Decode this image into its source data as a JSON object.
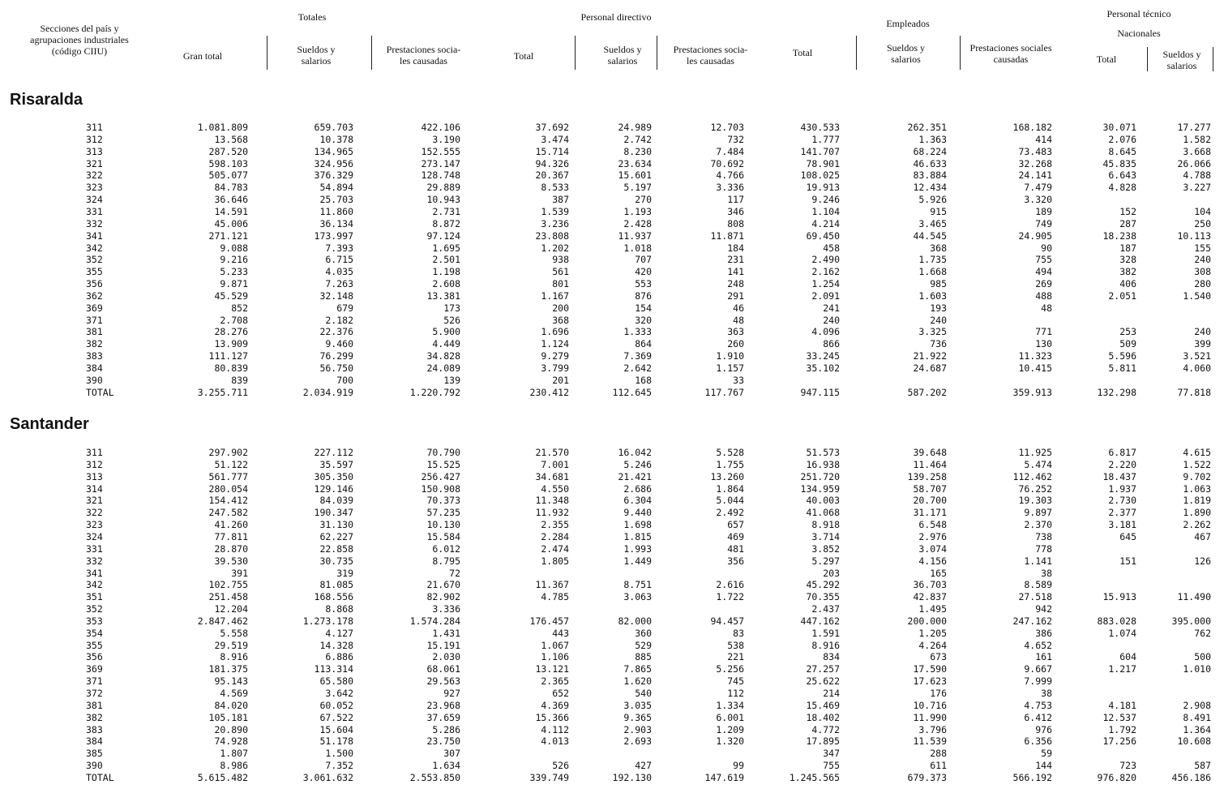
{
  "header": {
    "row_labels": "Secciones del país y\nagrupaciones industriales\n(código CIIU)",
    "totales": "Totales",
    "personal_directivo": "Personal directivo",
    "empleados": "Empleados",
    "personal_tecnico": "Personal técnico",
    "nacionales": "Nacionales",
    "columns": [
      "Gran total",
      "Sueldos y\nsalarios",
      "Prestaciones socia-\nles causadas",
      "Total",
      "Sueldos y\nsalarios",
      "Prestaciones socia-\nles causadas",
      "Total",
      "Sueldos y\nsalarios",
      "Prestaciones sociales\ncausadas",
      "Total",
      "Sueldos y\nsalarios"
    ]
  },
  "sections": [
    {
      "name": "Risaralda",
      "rows": [
        [
          "311",
          "1.081.809",
          "659.703",
          "422.106",
          "37.692",
          "24.989",
          "12.703",
          "430.533",
          "262.351",
          "168.182",
          "30.071",
          "17.277"
        ],
        [
          "312",
          "13.568",
          "10.378",
          "3.190",
          "3.474",
          "2.742",
          "732",
          "1.777",
          "1.363",
          "414",
          "2.076",
          "1.582"
        ],
        [
          "313",
          "287.520",
          "134.965",
          "152.555",
          "15.714",
          "8.230",
          "7.484",
          "141.707",
          "68.224",
          "73.483",
          "8.645",
          "3.668"
        ],
        [
          "321",
          "598.103",
          "324.956",
          "273.147",
          "94.326",
          "23.634",
          "70.692",
          "78.901",
          "46.633",
          "32.268",
          "45.835",
          "26.066"
        ],
        [
          "322",
          "505.077",
          "376.329",
          "128.748",
          "20.367",
          "15.601",
          "4.766",
          "108.025",
          "83.884",
          "24.141",
          "6.643",
          "4.788"
        ],
        [
          "323",
          "84.783",
          "54.894",
          "29.889",
          "8.533",
          "5.197",
          "3.336",
          "19.913",
          "12.434",
          "7.479",
          "4.828",
          "3.227"
        ],
        [
          "324",
          "36.646",
          "25.703",
          "10.943",
          "387",
          "270",
          "117",
          "9.246",
          "5.926",
          "3.320",
          "",
          ""
        ],
        [
          "331",
          "14.591",
          "11.860",
          "2.731",
          "1.539",
          "1.193",
          "346",
          "1.104",
          "915",
          "189",
          "152",
          "104"
        ],
        [
          "332",
          "45.006",
          "36.134",
          "8.872",
          "3.236",
          "2.428",
          "808",
          "4.214",
          "3.465",
          "749",
          "287",
          "250"
        ],
        [
          "341",
          "271.121",
          "173.997",
          "97.124",
          "23.808",
          "11.937",
          "11.871",
          "69.450",
          "44.545",
          "24.905",
          "18.238",
          "10.113"
        ],
        [
          "342",
          "9.088",
          "7.393",
          "1.695",
          "1.202",
          "1.018",
          "184",
          "458",
          "368",
          "90",
          "187",
          "155"
        ],
        [
          "352",
          "9.216",
          "6.715",
          "2.501",
          "938",
          "707",
          "231",
          "2.490",
          "1.735",
          "755",
          "328",
          "240"
        ],
        [
          "355",
          "5.233",
          "4.035",
          "1.198",
          "561",
          "420",
          "141",
          "2.162",
          "1.668",
          "494",
          "382",
          "308"
        ],
        [
          "356",
          "9.871",
          "7.263",
          "2.608",
          "801",
          "553",
          "248",
          "1.254",
          "985",
          "269",
          "406",
          "280"
        ],
        [
          "362",
          "45.529",
          "32.148",
          "13.381",
          "1.167",
          "876",
          "291",
          "2.091",
          "1.603",
          "488",
          "2.051",
          "1.540"
        ],
        [
          "369",
          "852",
          "679",
          "173",
          "200",
          "154",
          "46",
          "241",
          "193",
          "48",
          "",
          ""
        ],
        [
          "371",
          "2.708",
          "2.182",
          "526",
          "368",
          "320",
          "48",
          "240",
          "240",
          "",
          "",
          ""
        ],
        [
          "381",
          "28.276",
          "22.376",
          "5.900",
          "1.696",
          "1.333",
          "363",
          "4.096",
          "3.325",
          "771",
          "253",
          "240"
        ],
        [
          "382",
          "13.909",
          "9.460",
          "4.449",
          "1.124",
          "864",
          "260",
          "866",
          "736",
          "130",
          "509",
          "399"
        ],
        [
          "383",
          "111.127",
          "76.299",
          "34.828",
          "9.279",
          "7.369",
          "1.910",
          "33.245",
          "21.922",
          "11.323",
          "5.596",
          "3.521"
        ],
        [
          "384",
          "80.839",
          "56.750",
          "24.089",
          "3.799",
          "2.642",
          "1.157",
          "35.102",
          "24.687",
          "10.415",
          "5.811",
          "4.060"
        ],
        [
          "390",
          "839",
          "700",
          "139",
          "201",
          "168",
          "33",
          "",
          "",
          "",
          "",
          ""
        ],
        [
          "TOTAL",
          "3.255.711",
          "2.034.919",
          "1.220.792",
          "230.412",
          "112.645",
          "117.767",
          "947.115",
          "587.202",
          "359.913",
          "132.298",
          "77.818"
        ]
      ]
    },
    {
      "name": "Santander",
      "rows": [
        [
          "311",
          "297.902",
          "227.112",
          "70.790",
          "21.570",
          "16.042",
          "5.528",
          "51.573",
          "39.648",
          "11.925",
          "6.817",
          "4.615"
        ],
        [
          "312",
          "51.122",
          "35.597",
          "15.525",
          "7.001",
          "5.246",
          "1.755",
          "16.938",
          "11.464",
          "5.474",
          "2.220",
          "1.522"
        ],
        [
          "313",
          "561.777",
          "305.350",
          "256.427",
          "34.681",
          "21.421",
          "13.260",
          "251.720",
          "139.258",
          "112.462",
          "18.437",
          "9.702"
        ],
        [
          "314",
          "280.054",
          "129.146",
          "150.908",
          "4.550",
          "2.686",
          "1.864",
          "134.959",
          "58.707",
          "76.252",
          "1.937",
          "1.063"
        ],
        [
          "321",
          "154.412",
          "84.039",
          "70.373",
          "11.348",
          "6.304",
          "5.044",
          "40.003",
          "20.700",
          "19.303",
          "2.730",
          "1.819"
        ],
        [
          "322",
          "247.582",
          "190.347",
          "57.235",
          "11.932",
          "9.440",
          "2.492",
          "41.068",
          "31.171",
          "9.897",
          "2.377",
          "1.890"
        ],
        [
          "323",
          "41.260",
          "31.130",
          "10.130",
          "2.355",
          "1.698",
          "657",
          "8.918",
          "6.548",
          "2.370",
          "3.181",
          "2.262"
        ],
        [
          "324",
          "77.811",
          "62.227",
          "15.584",
          "2.284",
          "1.815",
          "469",
          "3.714",
          "2.976",
          "738",
          "645",
          "467"
        ],
        [
          "331",
          "28.870",
          "22.858",
          "6.012",
          "2.474",
          "1.993",
          "481",
          "3.852",
          "3.074",
          "778",
          "",
          ""
        ],
        [
          "332",
          "39.530",
          "30.735",
          "8.795",
          "1.805",
          "1.449",
          "356",
          "5.297",
          "4.156",
          "1.141",
          "151",
          "126"
        ],
        [
          "341",
          "391",
          "319",
          "72",
          "",
          "",
          "",
          "203",
          "165",
          "38",
          "",
          ""
        ],
        [
          "342",
          "102.755",
          "81.085",
          "21.670",
          "11.367",
          "8.751",
          "2.616",
          "45.292",
          "36.703",
          "8.589",
          "",
          ""
        ],
        [
          "351",
          "251.458",
          "168.556",
          "82.902",
          "4.785",
          "3.063",
          "1.722",
          "70.355",
          "42.837",
          "27.518",
          "15.913",
          "11.490"
        ],
        [
          "352",
          "12.204",
          "8.868",
          "3.336",
          "",
          "",
          "",
          "2.437",
          "1.495",
          "942",
          "",
          ""
        ],
        [
          "353",
          "2.847.462",
          "1.273.178",
          "1.574.284",
          "176.457",
          "82.000",
          "94.457",
          "447.162",
          "200.000",
          "247.162",
          "883.028",
          "395.000"
        ],
        [
          "354",
          "5.558",
          "4.127",
          "1.431",
          "443",
          "360",
          "83",
          "1.591",
          "1.205",
          "386",
          "1.074",
          "762"
        ],
        [
          "355",
          "29.519",
          "14.328",
          "15.191",
          "1.067",
          "529",
          "538",
          "8.916",
          "4.264",
          "4.652",
          "",
          ""
        ],
        [
          "356",
          "8.916",
          "6.886",
          "2.030",
          "1.106",
          "885",
          "221",
          "834",
          "673",
          "161",
          "604",
          "500"
        ],
        [
          "369",
          "181.375",
          "113.314",
          "68.061",
          "13.121",
          "7.865",
          "5.256",
          "27.257",
          "17.590",
          "9.667",
          "1.217",
          "1.010"
        ],
        [
          "371",
          "95.143",
          "65.580",
          "29.563",
          "2.365",
          "1.620",
          "745",
          "25.622",
          "17.623",
          "7.999",
          "",
          ""
        ],
        [
          "372",
          "4.569",
          "3.642",
          "927",
          "652",
          "540",
          "112",
          "214",
          "176",
          "38",
          "",
          ""
        ],
        [
          "381",
          "84.020",
          "60.052",
          "23.968",
          "4.369",
          "3.035",
          "1.334",
          "15.469",
          "10.716",
          "4.753",
          "4.181",
          "2.908"
        ],
        [
          "382",
          "105.181",
          "67.522",
          "37.659",
          "15.366",
          "9.365",
          "6.001",
          "18.402",
          "11.990",
          "6.412",
          "12.537",
          "8.491"
        ],
        [
          "383",
          "20.890",
          "15.604",
          "5.286",
          "4.112",
          "2.903",
          "1.209",
          "4.772",
          "3.796",
          "976",
          "1.792",
          "1.364"
        ],
        [
          "384",
          "74.928",
          "51.178",
          "23.750",
          "4.013",
          "2.693",
          "1.320",
          "17.895",
          "11.539",
          "6.356",
          "17.256",
          "10.608"
        ],
        [
          "385",
          "1.807",
          "1.500",
          "307",
          "",
          "",
          "",
          "347",
          "288",
          "59",
          "",
          ""
        ],
        [
          "390",
          "8.986",
          "7.352",
          "1.634",
          "526",
          "427",
          "99",
          "755",
          "611",
          "144",
          "723",
          "587"
        ],
        [
          "TOTAL",
          "5.615.482",
          "3.061.632",
          "2.553.850",
          "339.749",
          "192.130",
          "147.619",
          "1.245.565",
          "679.373",
          "566.192",
          "976.820",
          "456.186"
        ]
      ]
    }
  ]
}
